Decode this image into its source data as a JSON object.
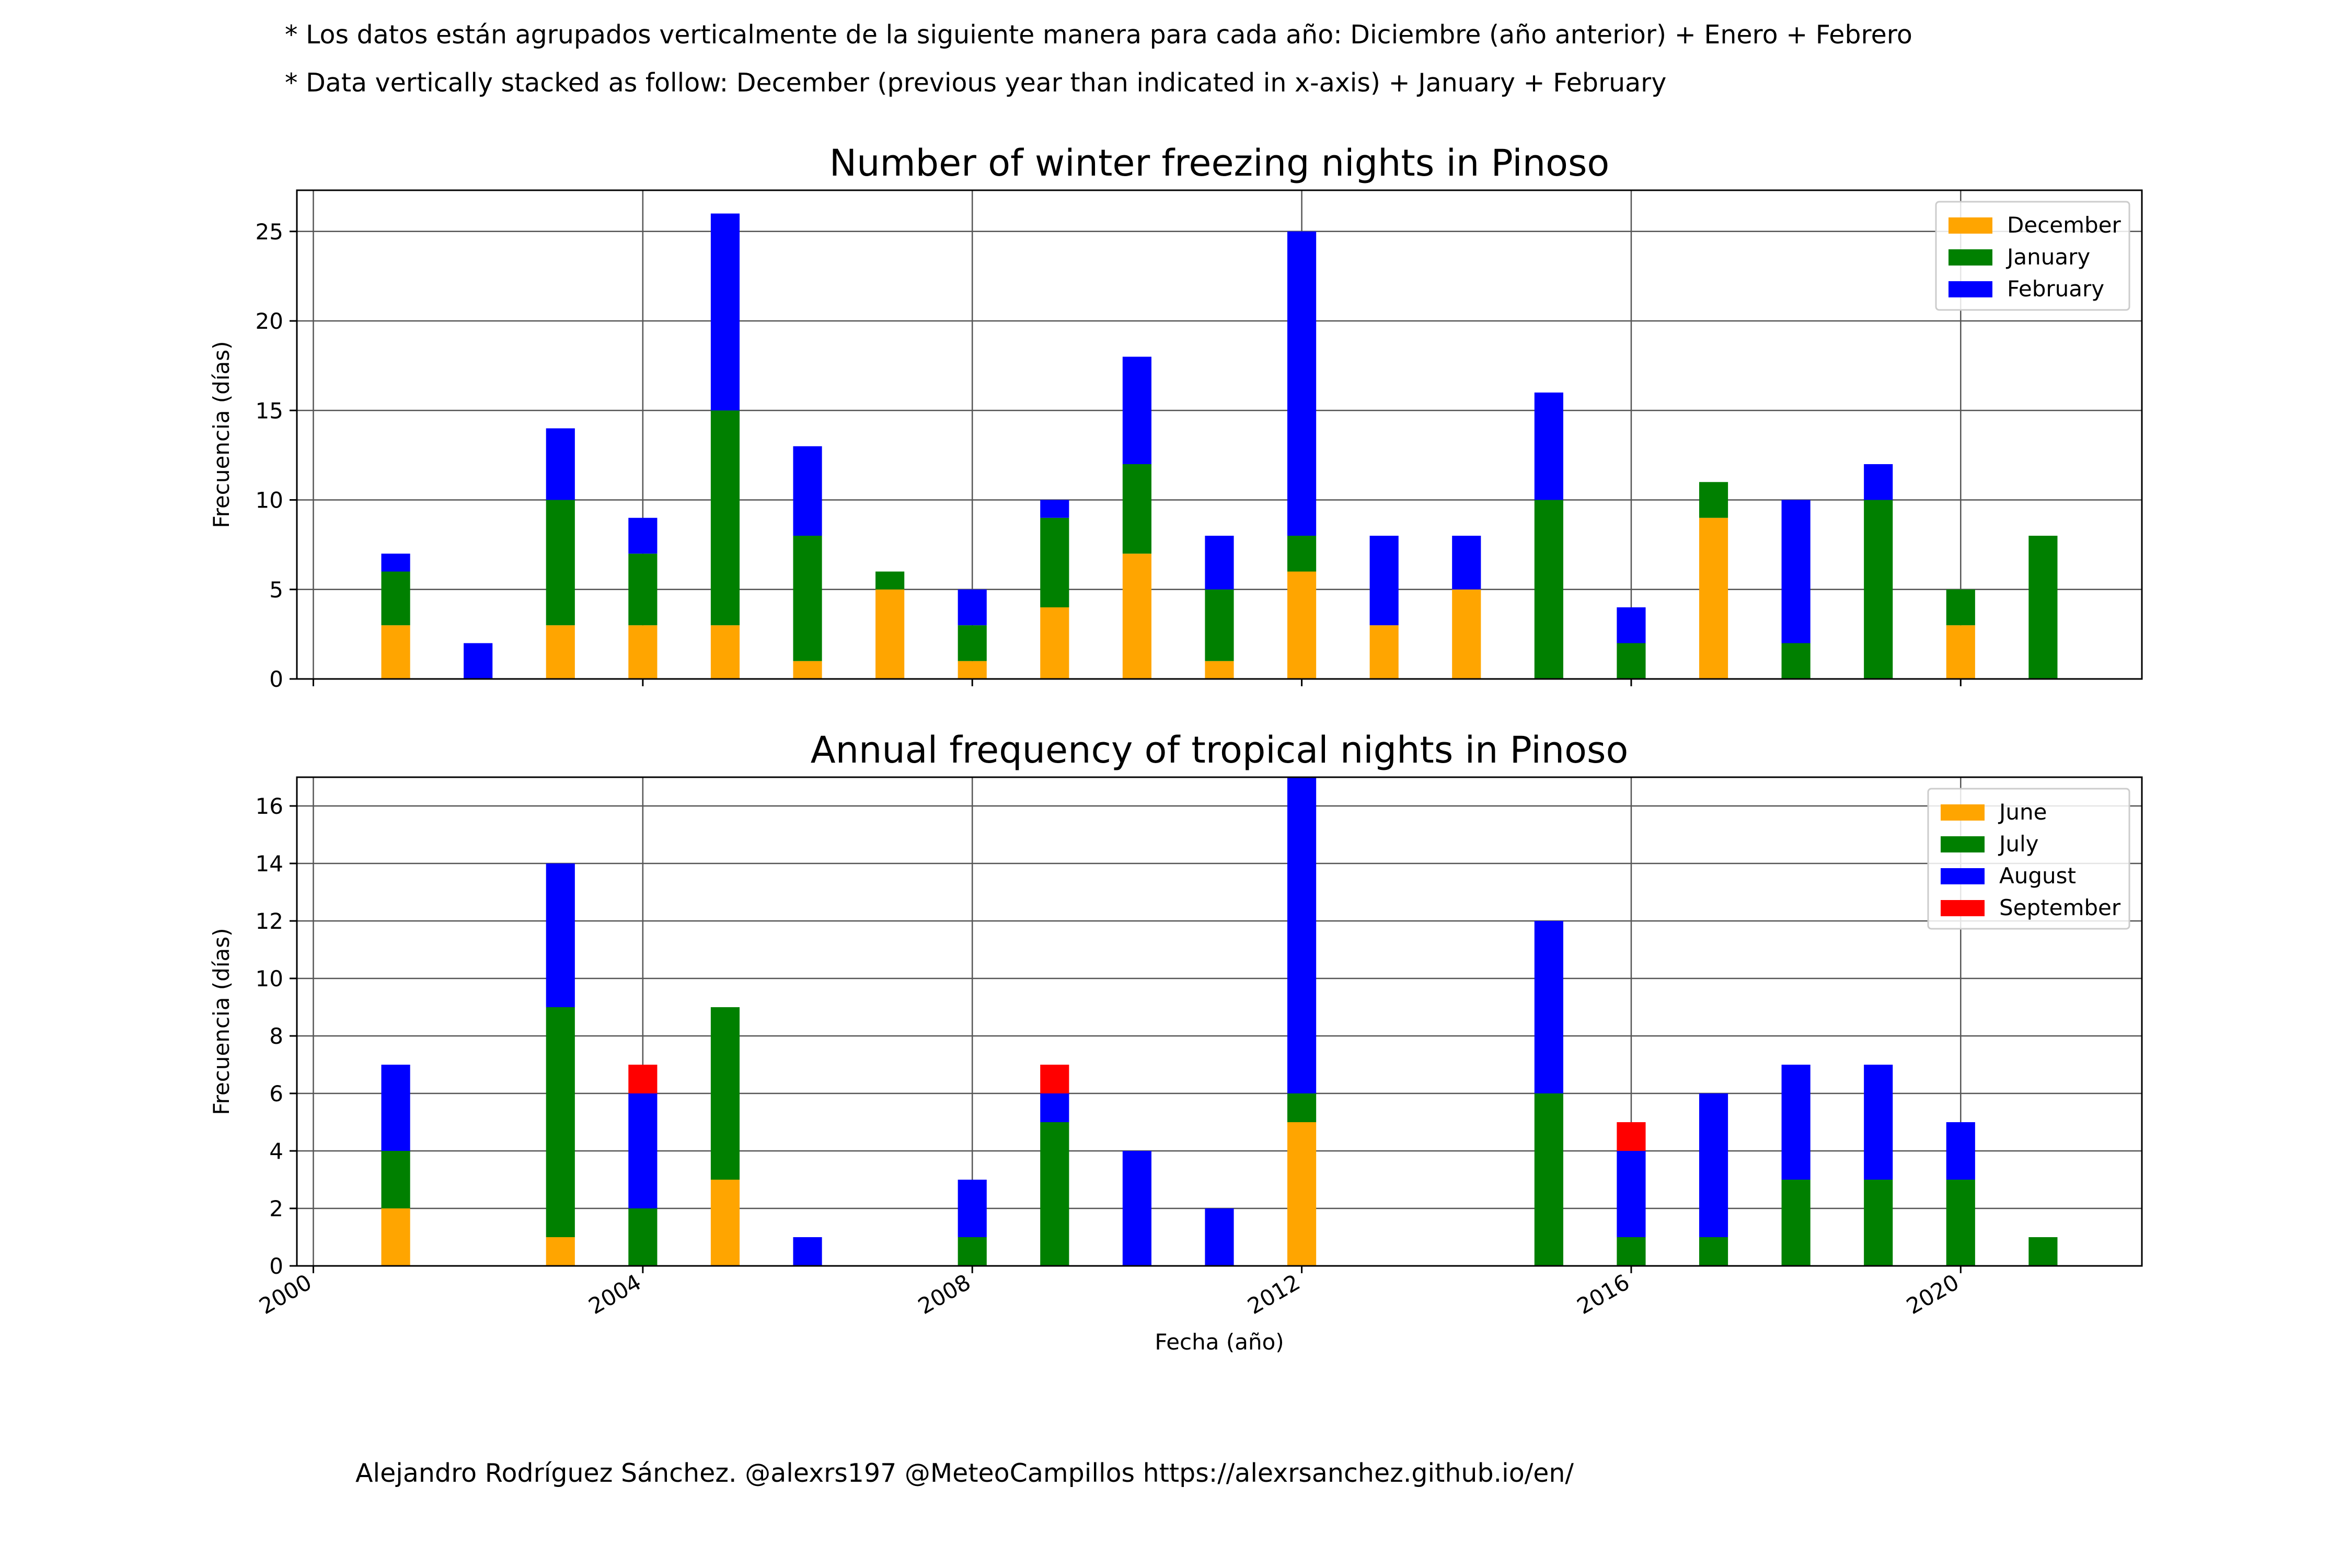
{
  "notes": {
    "es": "* Los datos están agrupados verticalmente de la siguiente manera para cada año: Diciembre (año anterior) + Enero  + Febrero",
    "en": "* Data vertically stacked as follow: December (previous year than indicated in x-axis) + January  + February"
  },
  "credit": "Alejandro Rodríguez Sánchez. @alexrs197 @MeteoCampillos   https://alexrsanchez.github.io/en/",
  "chart_data": [
    {
      "type": "bar",
      "stacked": true,
      "title": "Number of winter freezing nights in Pinoso",
      "xlabel": "",
      "ylabel": "Frecuencia (días)",
      "xlim": [
        1999.8,
        2022.2
      ],
      "ylim": [
        0,
        27.3
      ],
      "yticks": [
        0,
        5,
        10,
        15,
        20,
        25
      ],
      "xticks": [
        2000,
        2004,
        2008,
        2012,
        2016,
        2020
      ],
      "grid": true,
      "legend_position": "top-right",
      "x": [
        2001,
        2002,
        2003,
        2004,
        2005,
        2006,
        2007,
        2008,
        2009,
        2010,
        2011,
        2012,
        2013,
        2014,
        2015,
        2016,
        2017,
        2018,
        2019,
        2020,
        2021
      ],
      "series": [
        {
          "name": "December",
          "color": "#ffa500",
          "values": [
            3,
            0,
            3,
            3,
            3,
            1,
            5,
            1,
            4,
            7,
            1,
            6,
            3,
            5,
            0,
            0,
            9,
            0,
            0,
            3,
            0
          ]
        },
        {
          "name": "January",
          "color": "#008000",
          "values": [
            3,
            0,
            7,
            4,
            12,
            7,
            1,
            2,
            5,
            5,
            4,
            2,
            0,
            0,
            10,
            2,
            2,
            2,
            10,
            2,
            8
          ]
        },
        {
          "name": "February",
          "color": "#0000ff",
          "values": [
            1,
            2,
            4,
            2,
            11,
            5,
            0,
            2,
            1,
            6,
            3,
            17,
            5,
            3,
            6,
            2,
            0,
            8,
            2,
            0,
            0
          ]
        }
      ]
    },
    {
      "type": "bar",
      "stacked": true,
      "title": "Annual frequency of tropical nights in Pinoso",
      "xlabel": "Fecha (año)",
      "ylabel": "Frecuencia (días)",
      "xlim": [
        1999.8,
        2022.2
      ],
      "ylim": [
        0,
        17
      ],
      "yticks": [
        0,
        2,
        4,
        6,
        8,
        10,
        12,
        14,
        16
      ],
      "xticks": [
        2000,
        2004,
        2008,
        2012,
        2016,
        2020
      ],
      "grid": true,
      "legend_position": "top-right",
      "x": [
        2001,
        2002,
        2003,
        2004,
        2005,
        2006,
        2007,
        2008,
        2009,
        2010,
        2011,
        2012,
        2013,
        2014,
        2015,
        2016,
        2017,
        2018,
        2019,
        2020,
        2021
      ],
      "series": [
        {
          "name": "June",
          "color": "#ffa500",
          "values": [
            2,
            0,
            1,
            0,
            3,
            0,
            0,
            0,
            0,
            0,
            0,
            5,
            0,
            0,
            0,
            0,
            0,
            0,
            0,
            0,
            0
          ]
        },
        {
          "name": "July",
          "color": "#008000",
          "values": [
            2,
            0,
            8,
            2,
            6,
            0,
            0,
            1,
            5,
            0,
            0,
            1,
            0,
            0,
            6,
            1,
            1,
            3,
            3,
            3,
            1
          ]
        },
        {
          "name": "August",
          "color": "#0000ff",
          "values": [
            3,
            0,
            5,
            4,
            0,
            1,
            0,
            2,
            1,
            4,
            2,
            11,
            0,
            0,
            6,
            3,
            5,
            4,
            4,
            2,
            0
          ]
        },
        {
          "name": "September",
          "color": "#ff0000",
          "values": [
            0,
            0,
            0,
            1,
            0,
            0,
            0,
            0,
            1,
            0,
            0,
            0,
            0,
            0,
            0,
            1,
            0,
            0,
            0,
            0,
            0
          ]
        }
      ]
    }
  ]
}
